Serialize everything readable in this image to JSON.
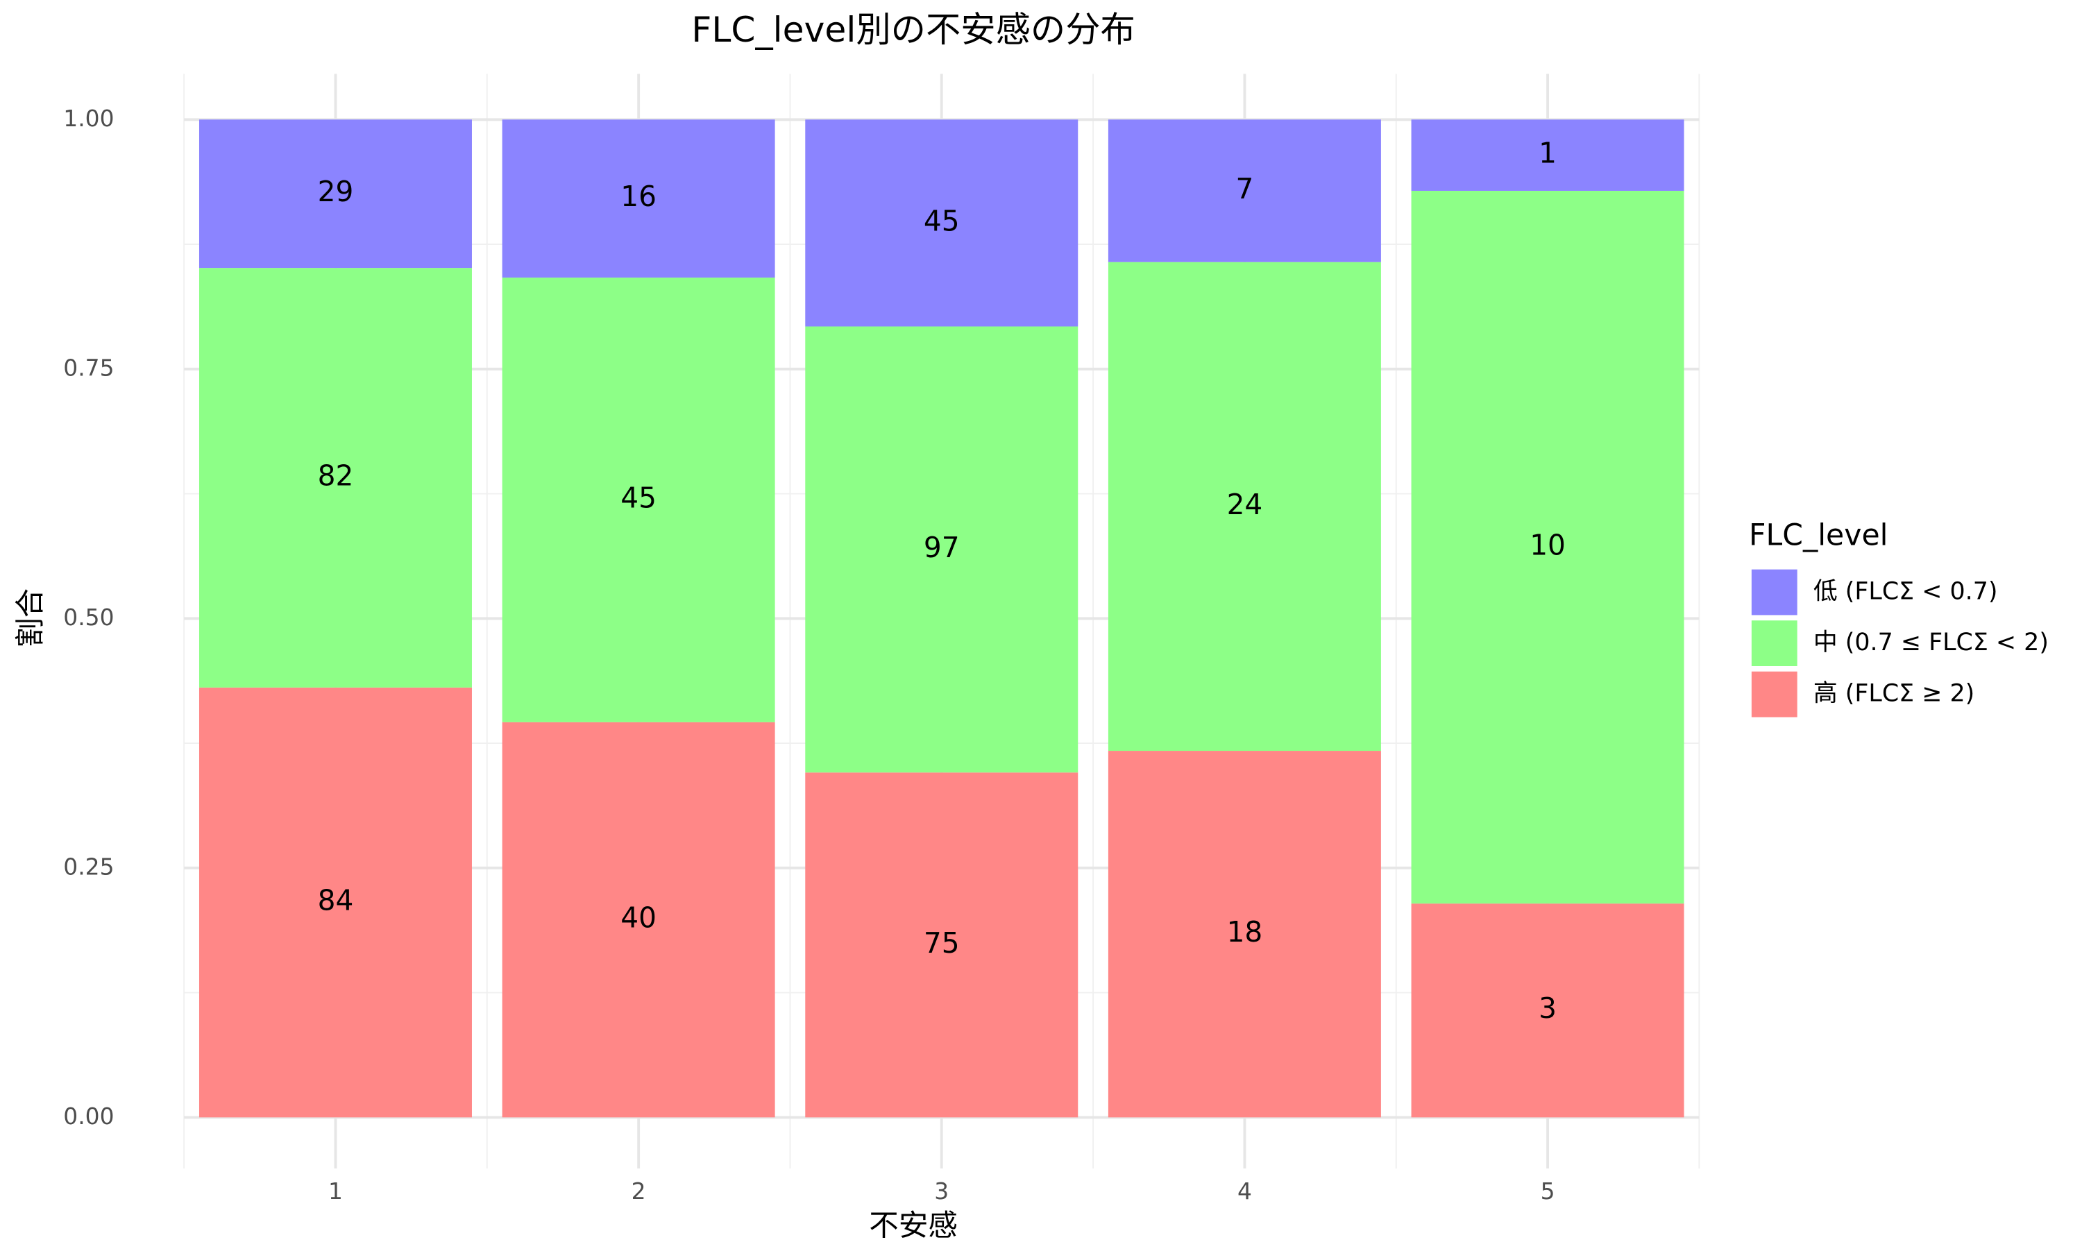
{
  "chart_data": {
    "type": "bar",
    "stacking": "percent",
    "title": "FLC_level別の不安感の分布",
    "x_label": "不安感",
    "y_label": "割合",
    "legend_title": "FLC_level",
    "categories": [
      "1",
      "2",
      "3",
      "4",
      "5"
    ],
    "series": [
      {
        "name": "低 (FLCΣ < 0.7)",
        "color": "#8b84ff",
        "values": [
          29,
          16,
          45,
          7,
          1
        ]
      },
      {
        "name": "中 (0.7 ≤ FLCΣ < 2)",
        "color": "#8dff87",
        "values": [
          82,
          45,
          97,
          24,
          10
        ]
      },
      {
        "name": "高 (FLCΣ ≥ 2)",
        "color": "#ff8787",
        "values": [
          84,
          40,
          75,
          18,
          3
        ]
      }
    ],
    "ylim": [
      0,
      1
    ],
    "yticks": [
      {
        "value": 0,
        "label": "0.00"
      },
      {
        "value": 0.25,
        "label": "0.25"
      },
      {
        "value": 0.5,
        "label": "0.50"
      },
      {
        "value": 0.75,
        "label": "0.75"
      },
      {
        "value": 1,
        "label": "1.00"
      }
    ],
    "grid": true,
    "legend_position": "right"
  }
}
